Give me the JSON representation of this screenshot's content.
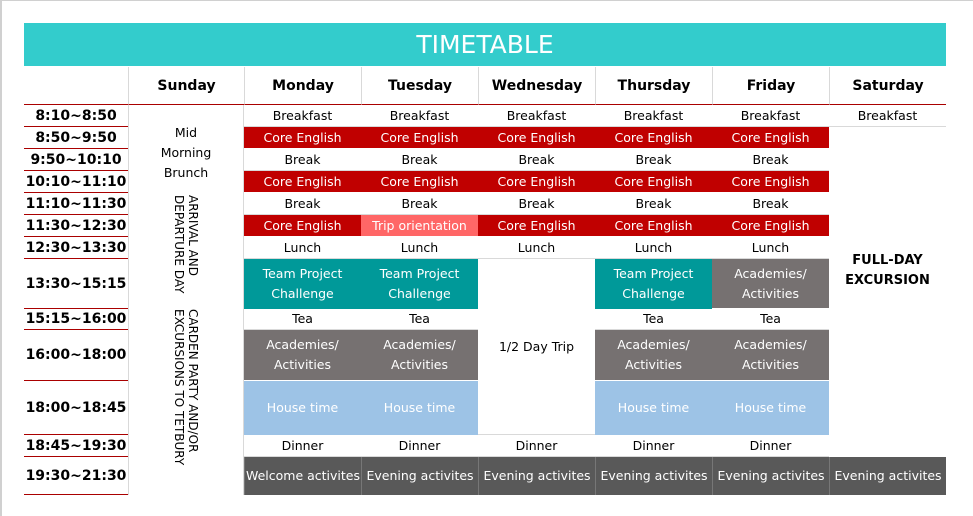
{
  "title": "TIMETABLE",
  "days": [
    "Sunday",
    "Monday",
    "Tuesday",
    "Wednesday",
    "Thursday",
    "Friday",
    "Saturday"
  ],
  "times": [
    "8:10~8:50",
    "8:50~9:50",
    "9:50~10:10",
    "10:10~11:10",
    "11:10~11:30",
    "11:30~12:30",
    "12:30~13:30",
    "13:30~15:15",
    "15:15~16:00",
    "16:00~18:00",
    "18:00~18:45",
    "18:45~19:30",
    "19:30~21:30"
  ],
  "sunday": {
    "brunch": [
      "Mid",
      "Morning",
      "Brunch"
    ],
    "arrival": [
      "ARRIVAL AND",
      "DEPARTURE DAY"
    ],
    "garden": [
      "CARDEN PARTY AND/OR",
      "EXCURSIONS TO TETBURY"
    ]
  },
  "act": {
    "breakfast": "Breakfast",
    "core": "Core English",
    "break": "Break",
    "trip_orientation": "Trip orientation",
    "lunch": "Lunch",
    "team": "Team Project Challenge",
    "tea": "Tea",
    "academies": "Academies/ Activities",
    "house": "House time",
    "dinner": "Dinner",
    "welcome": "Welcome activites",
    "evening": "Evening activites",
    "half_day": "1/2 Day Trip",
    "full_day": "FULL-DAY EXCURSION"
  },
  "colors": {
    "title": "#33cccc",
    "core": "#c00000",
    "trip_orientation": "#ff6666",
    "team": "#009999",
    "academies": "#767171",
    "house": "#9dc3e6",
    "evening": "#595959"
  }
}
